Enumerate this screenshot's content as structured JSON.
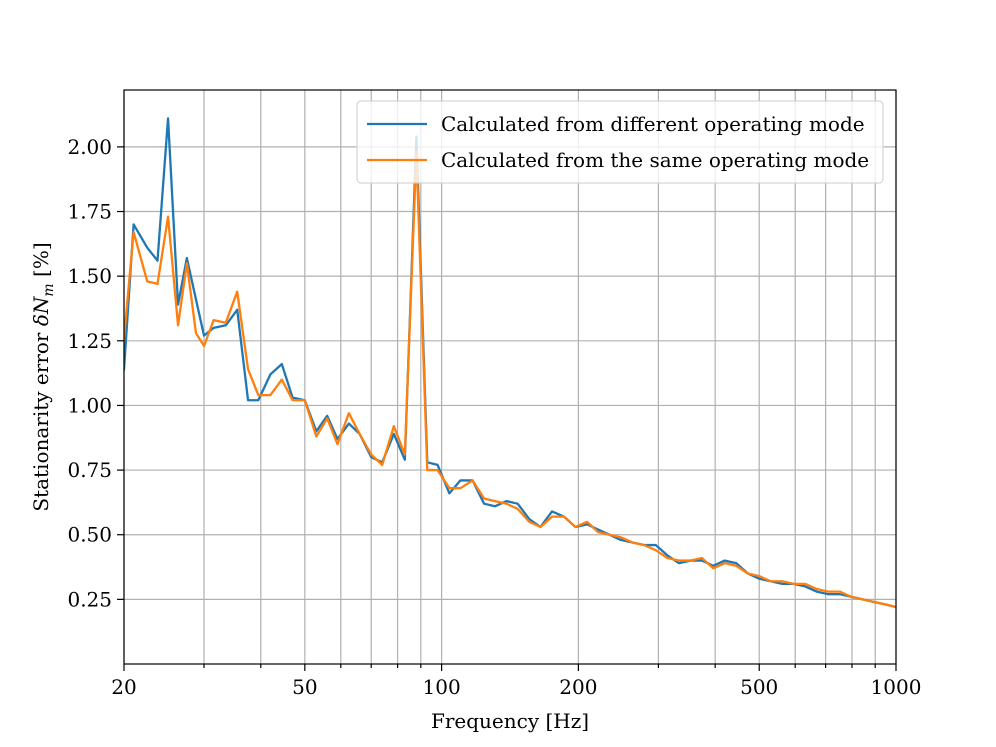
{
  "chart_data": {
    "type": "line",
    "title": "",
    "xlabel": "Frequency [Hz]",
    "ylabel": "Stationarity error δN_m [%]",
    "ylabel_parts": {
      "prefix": "Stationarity error ",
      "delta": "δ",
      "symbol": "N",
      "subscript": "m",
      "suffix": " [%]"
    },
    "xscale": "log",
    "xlim": [
      20,
      1000
    ],
    "ylim": [
      0.0,
      2.22
    ],
    "grid": true,
    "legend_position": "top-right",
    "x_ticks": [
      {
        "value": 20,
        "label": "20"
      },
      {
        "value": 50,
        "label": "50"
      },
      {
        "value": 100,
        "label": "100"
      },
      {
        "value": 200,
        "label": "200"
      },
      {
        "value": 500,
        "label": "500"
      },
      {
        "value": 1000,
        "label": "1000"
      }
    ],
    "x_minor_ticks": [
      30,
      40,
      60,
      70,
      80,
      90,
      300,
      400,
      600,
      700,
      800,
      900
    ],
    "y_ticks": [
      {
        "value": 0.25,
        "label": "0.25"
      },
      {
        "value": 0.5,
        "label": "0.50"
      },
      {
        "value": 0.75,
        "label": "0.75"
      },
      {
        "value": 1.0,
        "label": "1.00"
      },
      {
        "value": 1.25,
        "label": "1.25"
      },
      {
        "value": 1.5,
        "label": "1.50"
      },
      {
        "value": 1.75,
        "label": "1.75"
      },
      {
        "value": 2.0,
        "label": "2.00"
      }
    ],
    "series": [
      {
        "name": "Calculated from different operating mode",
        "color": "#1f77b4",
        "x": [
          20,
          21,
          22.5,
          23.7,
          25,
          26.3,
          27.5,
          28.8,
          30,
          31.5,
          33.5,
          35.5,
          37.5,
          39.5,
          42,
          44.5,
          47,
          50,
          53,
          56,
          59,
          62.5,
          66,
          70,
          74,
          78.5,
          83,
          88,
          93,
          98,
          104,
          110,
          117,
          124,
          131,
          139,
          147,
          156,
          165,
          175,
          186,
          197,
          209,
          221,
          234,
          248,
          263,
          279,
          296,
          314,
          333,
          353,
          374,
          396,
          420,
          445,
          472,
          500,
          530,
          562,
          596,
          631,
          669,
          709,
          752,
          797,
          845,
          895,
          949,
          1000
        ],
        "values": [
          1.14,
          1.7,
          1.61,
          1.56,
          2.11,
          1.39,
          1.57,
          1.41,
          1.27,
          1.3,
          1.31,
          1.37,
          1.02,
          1.02,
          1.12,
          1.16,
          1.03,
          1.02,
          0.9,
          0.96,
          0.87,
          0.93,
          0.89,
          0.8,
          0.78,
          0.89,
          0.79,
          2.04,
          0.78,
          0.77,
          0.66,
          0.71,
          0.71,
          0.62,
          0.61,
          0.63,
          0.62,
          0.56,
          0.53,
          0.59,
          0.57,
          0.53,
          0.54,
          0.52,
          0.5,
          0.48,
          0.47,
          0.46,
          0.46,
          0.42,
          0.39,
          0.4,
          0.4,
          0.38,
          0.4,
          0.39,
          0.35,
          0.33,
          0.32,
          0.31,
          0.31,
          0.3,
          0.28,
          0.27,
          0.27,
          0.26,
          0.25,
          0.24,
          0.23,
          0.22
        ]
      },
      {
        "name": "Calculated from the same operating mode",
        "color": "#ff7f0e",
        "x": [
          20,
          21,
          22.5,
          23.7,
          25,
          26.3,
          27.5,
          28.8,
          30,
          31.5,
          33.5,
          35.5,
          37.5,
          39.5,
          42,
          44.5,
          47,
          50,
          53,
          56,
          59,
          62.5,
          66,
          70,
          74,
          78.5,
          83,
          88,
          93,
          98,
          104,
          110,
          117,
          124,
          131,
          139,
          147,
          156,
          165,
          175,
          186,
          197,
          209,
          221,
          234,
          248,
          263,
          279,
          296,
          314,
          333,
          353,
          374,
          396,
          420,
          445,
          472,
          500,
          530,
          562,
          596,
          631,
          669,
          709,
          752,
          797,
          845,
          895,
          949,
          1000
        ],
        "values": [
          1.26,
          1.67,
          1.48,
          1.47,
          1.73,
          1.31,
          1.55,
          1.28,
          1.23,
          1.33,
          1.32,
          1.44,
          1.14,
          1.04,
          1.04,
          1.1,
          1.02,
          1.02,
          0.88,
          0.95,
          0.85,
          0.97,
          0.89,
          0.81,
          0.77,
          0.92,
          0.81,
          1.98,
          0.75,
          0.75,
          0.68,
          0.68,
          0.71,
          0.64,
          0.63,
          0.62,
          0.6,
          0.55,
          0.53,
          0.57,
          0.57,
          0.53,
          0.55,
          0.51,
          0.5,
          0.49,
          0.47,
          0.46,
          0.44,
          0.41,
          0.4,
          0.4,
          0.41,
          0.37,
          0.39,
          0.38,
          0.35,
          0.34,
          0.32,
          0.32,
          0.31,
          0.31,
          0.29,
          0.28,
          0.28,
          0.26,
          0.25,
          0.24,
          0.23,
          0.22
        ]
      }
    ]
  }
}
